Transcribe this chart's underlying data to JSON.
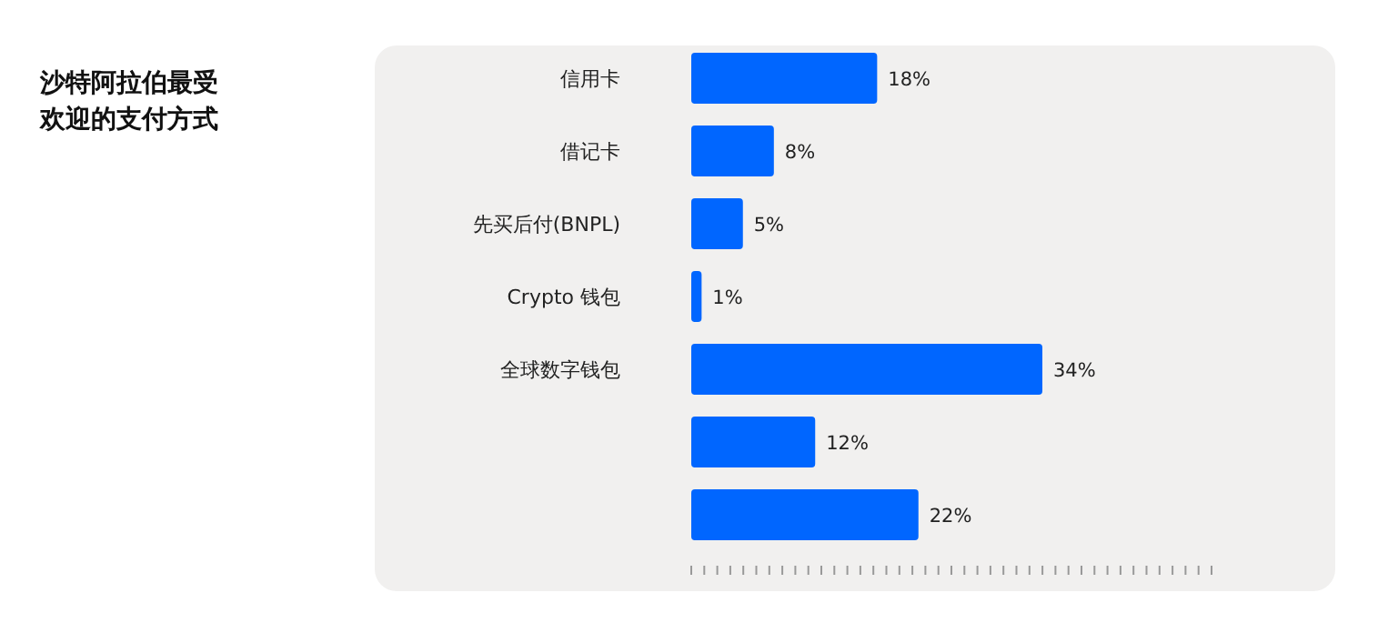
{
  "chart_data": {
    "type": "bar",
    "orientation": "horizontal",
    "title": "沙特阿拉伯最受欢迎的支付方式",
    "categories": [
      "信用卡",
      "借记卡",
      "先买后付(BNPL)",
      "Crypto 钱包",
      "全球数字钱包",
      null,
      null
    ],
    "values": [
      18,
      8,
      5,
      1,
      34,
      12,
      22
    ],
    "value_labels": [
      "18%",
      "8%",
      "5%",
      "1%",
      "34%",
      "12%",
      "22%"
    ],
    "color": "#0066ff"
  }
}
